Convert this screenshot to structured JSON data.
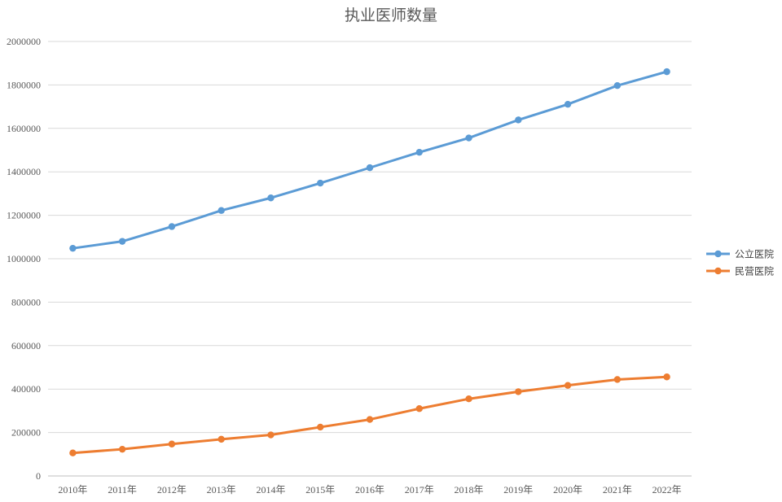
{
  "chart_data": {
    "type": "line",
    "title": "执业医师数量",
    "categories": [
      "2010年",
      "2011年",
      "2012年",
      "2013年",
      "2014年",
      "2015年",
      "2016年",
      "2017年",
      "2018年",
      "2019年",
      "2020年",
      "2021年",
      "2022年"
    ],
    "series": [
      {
        "name": "公立医院",
        "color": "#5b9bd5",
        "values": [
          1048000,
          1080000,
          1148000,
          1222000,
          1280000,
          1348000,
          1419000,
          1490000,
          1556000,
          1639000,
          1711000,
          1797000,
          1861000
        ]
      },
      {
        "name": "民营医院",
        "color": "#ed7d31",
        "values": [
          106000,
          123000,
          147000,
          169000,
          189000,
          225000,
          260000,
          310000,
          355000,
          388000,
          417000,
          444000,
          456000
        ]
      }
    ],
    "ylim": [
      0,
      2000000
    ],
    "yticks": [
      "0",
      "200000",
      "400000",
      "600000",
      "800000",
      "1000000",
      "1200000",
      "1400000",
      "1600000",
      "1800000",
      "2000000"
    ],
    "grid": true,
    "legend_position": "right"
  }
}
